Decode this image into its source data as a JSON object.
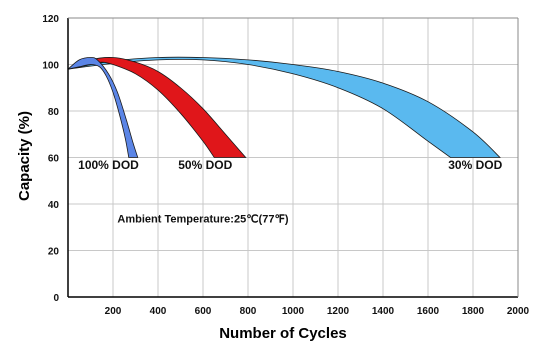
{
  "chart_data": {
    "type": "area",
    "xlabel": "Number of Cycles",
    "ylabel": "Capacity (%)",
    "xlim": [
      0,
      2000
    ],
    "ylim": [
      0,
      120
    ],
    "x_ticks": [
      200,
      400,
      600,
      800,
      1000,
      1200,
      1400,
      1600,
      1800,
      2000
    ],
    "y_ticks": [
      0,
      20,
      40,
      60,
      80,
      100,
      120
    ],
    "grid": true,
    "annotation": "Ambient Temperature:25℃(77℉)",
    "series": [
      {
        "name": "100% DOD",
        "color": "#5b85e6",
        "upper": {
          "x": [
            0,
            50,
            100,
            130,
            180,
            220,
            260,
            290,
            310
          ],
          "y": [
            98,
            102,
            103,
            102,
            96,
            88,
            76,
            66,
            60
          ]
        },
        "lower": {
          "x": [
            0,
            50,
            100,
            140,
            170,
            200,
            230,
            255,
            270
          ],
          "y": [
            98,
            99,
            100,
            99,
            95,
            88,
            78,
            68,
            60
          ]
        }
      },
      {
        "name": "50% DOD",
        "color": "#e0161a",
        "upper": {
          "x": [
            0,
            100,
            200,
            300,
            400,
            500,
            600,
            700,
            790
          ],
          "y": [
            98,
            102,
            103,
            101,
            97,
            90,
            81,
            70,
            60
          ]
        },
        "lower": {
          "x": [
            0,
            100,
            150,
            200,
            300,
            400,
            500,
            600,
            650
          ],
          "y": [
            98,
            100,
            101,
            100,
            96,
            89,
            79,
            67,
            60
          ]
        }
      },
      {
        "name": "30% DOD",
        "color": "#5ab9ef",
        "upper": {
          "x": [
            0,
            200,
            400,
            600,
            800,
            1000,
            1200,
            1400,
            1600,
            1800,
            1920
          ],
          "y": [
            98,
            101.5,
            103,
            103,
            102,
            100,
            97,
            92,
            84,
            71,
            60
          ]
        },
        "lower": {
          "x": [
            0,
            200,
            400,
            600,
            800,
            1000,
            1200,
            1400,
            1600,
            1700
          ],
          "y": [
            98,
            100.5,
            102,
            102,
            100,
            96,
            90,
            81,
            67,
            60
          ]
        }
      }
    ],
    "band_labels": [
      {
        "text": "100% DOD",
        "x": 180,
        "y": 55
      },
      {
        "text": "50% DOD",
        "x": 610,
        "y": 55
      },
      {
        "text": "30% DOD",
        "x": 1810,
        "y": 55
      }
    ],
    "annotation_pos": {
      "x": 600,
      "y": 32
    }
  }
}
